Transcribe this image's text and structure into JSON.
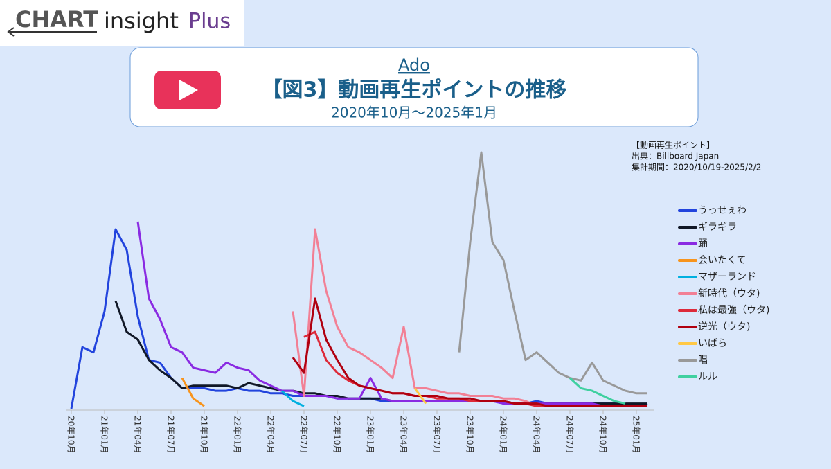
{
  "header": {
    "brand": [
      "CHART",
      "insight",
      "Plus"
    ],
    "artist": "Ado"
  },
  "chart_data": {
    "type": "line",
    "title": "【図3】動画再生ポイントの推移",
    "subtitle": "2020年10月～2025年1月",
    "annotations": [
      "【動画再生ポイント】",
      "出典：Billboard Japan",
      "集計期間：2020/10/19-2025/2/2"
    ],
    "categories": [
      "20年10月",
      null,
      null,
      "21年01月",
      null,
      null,
      "21年04月",
      null,
      null,
      "21年07月",
      null,
      null,
      "21年10月",
      null,
      null,
      "22年01月",
      null,
      null,
      "22年04月",
      null,
      null,
      "22年07月",
      null,
      null,
      "22年10月",
      null,
      null,
      "23年01月",
      null,
      null,
      "23年04月",
      null,
      null,
      "23年07月",
      null,
      null,
      "23年10月",
      null,
      null,
      "24年01月",
      null,
      null,
      "24年04月",
      null,
      null,
      "24年07月",
      null,
      null,
      "24年10月",
      null,
      null,
      "25年01月",
      null
    ],
    "series": [
      {
        "name": "うっせぇわ",
        "color": "#2244dd",
        "values": [
          0,
          24,
          22,
          38,
          70,
          62,
          36,
          19,
          18,
          12,
          8,
          8,
          8,
          7,
          7,
          8,
          7,
          7,
          6,
          6,
          5,
          5,
          5,
          5,
          4,
          4,
          4,
          4,
          3,
          3,
          3,
          3,
          3,
          3,
          3,
          3,
          3,
          3,
          3,
          2,
          2,
          2,
          3,
          2,
          2,
          2,
          2,
          2,
          2,
          2,
          1,
          1,
          2
        ]
      },
      {
        "name": "ギラギラ",
        "color": "#111827",
        "values": [
          null,
          null,
          null,
          null,
          42,
          30,
          27,
          19,
          15,
          12,
          8,
          9,
          9,
          9,
          9,
          8,
          10,
          9,
          8,
          7,
          7,
          6,
          6,
          5,
          5,
          4,
          4,
          4,
          4,
          3,
          3,
          3,
          3,
          3,
          3,
          3,
          3,
          3,
          3,
          3,
          2,
          2,
          2,
          2,
          2,
          2,
          2,
          2,
          2,
          2,
          2,
          2,
          2
        ]
      },
      {
        "name": "踊",
        "color": "#8a2be2",
        "values": [
          null,
          null,
          null,
          null,
          null,
          null,
          73,
          43,
          35,
          24,
          22,
          16,
          15,
          14,
          18,
          16,
          15,
          11,
          9,
          7,
          7,
          5,
          5,
          5,
          4,
          4,
          4,
          12,
          4,
          3,
          3,
          3,
          3,
          3,
          3,
          3,
          3,
          3,
          3,
          2,
          2,
          2,
          2,
          2,
          2,
          2,
          2,
          2,
          1,
          1,
          1,
          1,
          1
        ]
      },
      {
        "name": "会いたくて",
        "color": "#f7941d",
        "values": [
          null,
          null,
          null,
          null,
          null,
          null,
          null,
          null,
          null,
          null,
          12,
          4,
          1,
          null,
          null,
          null,
          null,
          null,
          null,
          null,
          null,
          null,
          null,
          null,
          null,
          null,
          null,
          null,
          null,
          null,
          null,
          null,
          null,
          null,
          null,
          null,
          null,
          null,
          null,
          null,
          null,
          null,
          null,
          null,
          null,
          null,
          null,
          null,
          null,
          null,
          null,
          null,
          null
        ]
      },
      {
        "name": "マザーランド",
        "color": "#00b0e0",
        "values": [
          null,
          null,
          null,
          null,
          null,
          null,
          null,
          null,
          null,
          null,
          null,
          null,
          null,
          null,
          null,
          null,
          null,
          null,
          null,
          7,
          3,
          1,
          null,
          null,
          null,
          null,
          null,
          null,
          null,
          null,
          null,
          null,
          null,
          null,
          null,
          null,
          null,
          null,
          null,
          null,
          null,
          null,
          null,
          null,
          null,
          null,
          null,
          null,
          null,
          null,
          null,
          null,
          null
        ]
      },
      {
        "name": "新時代（ウタ)",
        "color": "#f28095",
        "values": [
          null,
          null,
          null,
          null,
          null,
          null,
          null,
          null,
          null,
          null,
          null,
          null,
          null,
          null,
          null,
          null,
          null,
          null,
          null,
          null,
          38,
          5,
          70,
          46,
          32,
          24,
          22,
          19,
          16,
          12,
          32,
          8,
          8,
          7,
          6,
          6,
          5,
          5,
          5,
          4,
          4,
          3,
          1,
          1,
          1,
          null,
          null,
          null,
          null,
          null,
          null,
          null,
          null
        ]
      },
      {
        "name": "私は最強（ウタ)",
        "color": "#dd2a3a",
        "values": [
          null,
          null,
          null,
          null,
          null,
          null,
          null,
          null,
          null,
          null,
          null,
          null,
          null,
          null,
          null,
          null,
          null,
          null,
          null,
          null,
          null,
          28,
          30,
          19,
          14,
          11,
          9,
          8,
          7,
          6,
          6,
          5,
          5,
          4,
          4,
          4,
          3,
          3,
          3,
          3,
          2,
          2,
          1,
          1,
          1,
          1,
          1,
          1,
          1,
          1,
          1,
          1,
          1
        ]
      },
      {
        "name": "逆光（ウタ)",
        "color": "#b00010",
        "values": [
          null,
          null,
          null,
          null,
          null,
          null,
          null,
          null,
          null,
          null,
          null,
          null,
          null,
          null,
          null,
          null,
          null,
          null,
          null,
          null,
          20,
          14,
          43,
          27,
          19,
          12,
          9,
          8,
          7,
          6,
          6,
          5,
          5,
          5,
          4,
          4,
          4,
          3,
          3,
          3,
          2,
          2,
          2,
          1,
          1,
          1,
          1,
          1,
          1,
          1,
          1,
          1,
          1
        ]
      },
      {
        "name": "いばら",
        "color": "#ffc845",
        "values": [
          null,
          null,
          null,
          null,
          null,
          null,
          null,
          null,
          null,
          null,
          null,
          null,
          null,
          null,
          null,
          null,
          null,
          null,
          null,
          null,
          null,
          null,
          null,
          null,
          null,
          null,
          null,
          null,
          null,
          null,
          null,
          8,
          2,
          null,
          null,
          null,
          null,
          null,
          null,
          null,
          null,
          null,
          null,
          null,
          null,
          null,
          null,
          null,
          null,
          null,
          null,
          null,
          null
        ]
      },
      {
        "name": "唱",
        "color": "#999999",
        "values": [
          null,
          null,
          null,
          null,
          null,
          null,
          null,
          null,
          null,
          null,
          null,
          null,
          null,
          null,
          null,
          null,
          null,
          null,
          null,
          null,
          null,
          null,
          null,
          null,
          null,
          null,
          null,
          null,
          null,
          null,
          null,
          null,
          null,
          null,
          null,
          22,
          65,
          100,
          65,
          58,
          38,
          19,
          22,
          18,
          14,
          12,
          11,
          18,
          11,
          9,
          7,
          6,
          6
        ]
      },
      {
        "name": "ルル",
        "color": "#40d0a0",
        "values": [
          null,
          null,
          null,
          null,
          null,
          null,
          null,
          null,
          null,
          null,
          null,
          null,
          null,
          null,
          null,
          null,
          null,
          null,
          null,
          null,
          null,
          null,
          null,
          null,
          null,
          null,
          null,
          null,
          null,
          null,
          null,
          null,
          null,
          null,
          null,
          null,
          null,
          null,
          null,
          null,
          null,
          null,
          null,
          null,
          null,
          12,
          8,
          7,
          5,
          3,
          2,
          null,
          null
        ]
      }
    ]
  }
}
